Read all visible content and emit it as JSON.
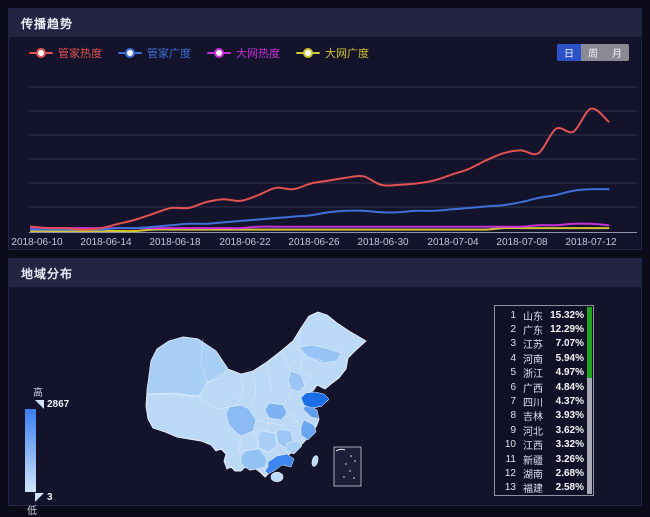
{
  "panels": {
    "trend": {
      "title": "传播趋势",
      "tabs": [
        {
          "label": "日",
          "active": true
        },
        {
          "label": "周",
          "active": false
        },
        {
          "label": "月",
          "active": false
        }
      ],
      "active_tab_color": "#2b52c6",
      "inactive_tab_color": "#8b8a93"
    },
    "region": {
      "title": "地域分布",
      "map_scale": {
        "high_label": "高",
        "high_value": "2867",
        "low_label": "低",
        "low_value": "3",
        "gradient_top": "#3a7ef0",
        "gradient_bottom": "#cfe6fb"
      },
      "map_colors": {
        "base": "#bcdaf8",
        "highlight_1": "#1a6fe8",
        "highlight_2": "#3e87f0"
      },
      "scrollbar_color": "#21a41e",
      "ranking": [
        {
          "rank": "1",
          "name": "山东",
          "pct": "15.32%"
        },
        {
          "rank": "2",
          "name": "广东",
          "pct": "12.29%"
        },
        {
          "rank": "3",
          "name": "江苏",
          "pct": "7.07%"
        },
        {
          "rank": "4",
          "name": "河南",
          "pct": "5.94%"
        },
        {
          "rank": "5",
          "name": "浙江",
          "pct": "4.97%"
        },
        {
          "rank": "6",
          "name": "广西",
          "pct": "4.84%"
        },
        {
          "rank": "7",
          "name": "四川",
          "pct": "4.37%"
        },
        {
          "rank": "8",
          "name": "吉林",
          "pct": "3.93%"
        },
        {
          "rank": "9",
          "name": "河北",
          "pct": "3.62%"
        },
        {
          "rank": "10",
          "name": "江西",
          "pct": "3.32%"
        },
        {
          "rank": "11",
          "name": "新疆",
          "pct": "3.26%"
        },
        {
          "rank": "12",
          "name": "湖南",
          "pct": "2.68%"
        },
        {
          "rank": "13",
          "name": "福建",
          "pct": "2.58%"
        }
      ]
    }
  },
  "chart_data": {
    "type": "line",
    "x": [
      "2018-06-10",
      "2018-06-11",
      "2018-06-12",
      "2018-06-13",
      "2018-06-14",
      "2018-06-15",
      "2018-06-16",
      "2018-06-17",
      "2018-06-18",
      "2018-06-19",
      "2018-06-20",
      "2018-06-21",
      "2018-06-22",
      "2018-06-23",
      "2018-06-24",
      "2018-06-25",
      "2018-06-26",
      "2018-06-27",
      "2018-06-28",
      "2018-06-29",
      "2018-06-30",
      "2018-07-01",
      "2018-07-02",
      "2018-07-03",
      "2018-07-04",
      "2018-07-05",
      "2018-07-06",
      "2018-07-07",
      "2018-07-08",
      "2018-07-09",
      "2018-07-10",
      "2018-07-11",
      "2018-07-12",
      "2018-07-13"
    ],
    "x_ticks": [
      "2018-06-10",
      "2018-06-14",
      "2018-06-18",
      "2018-06-22",
      "2018-06-26",
      "2018-06-30",
      "2018-07-04",
      "2018-07-08",
      "2018-07-12"
    ],
    "ylim": [
      0,
      100
    ],
    "grid": true,
    "legend_position": "top-left",
    "series": [
      {
        "name": "管家热度",
        "color": "#e25252",
        "values": [
          3,
          2,
          2,
          1,
          2,
          5,
          8,
          12,
          16,
          16,
          20,
          22,
          21,
          25,
          30,
          29,
          33,
          35,
          37,
          38,
          32,
          32,
          33,
          35,
          39,
          43,
          49,
          54,
          56,
          54,
          71,
          69,
          85,
          76
        ]
      },
      {
        "name": "管家广度",
        "color": "#3f6fd8",
        "values": [
          1,
          1,
          1,
          1,
          1,
          2,
          2,
          3,
          4,
          5,
          5,
          6,
          7,
          8,
          9,
          10,
          11,
          13,
          14,
          14,
          13,
          13,
          14,
          14,
          15,
          16,
          17,
          18,
          20,
          23,
          25,
          28,
          29,
          29
        ]
      },
      {
        "name": "大网热度",
        "color": "#c631d8",
        "values": [
          2,
          2,
          2,
          2,
          2,
          2,
          2,
          2,
          2,
          2,
          2,
          2,
          2,
          3,
          3,
          3,
          3,
          3,
          3,
          3,
          3,
          3,
          3,
          3,
          3,
          3,
          3,
          3,
          3,
          4,
          4,
          5,
          5,
          4
        ]
      },
      {
        "name": "大网广度",
        "color": "#d2c42e",
        "values": [
          0,
          0,
          0,
          0,
          0,
          0,
          0,
          1,
          1,
          1,
          1,
          1,
          1,
          1,
          1,
          1,
          1,
          1,
          1,
          1,
          1,
          1,
          1,
          1,
          1,
          1,
          1,
          2,
          2,
          2,
          2,
          2,
          2,
          2
        ]
      }
    ]
  }
}
